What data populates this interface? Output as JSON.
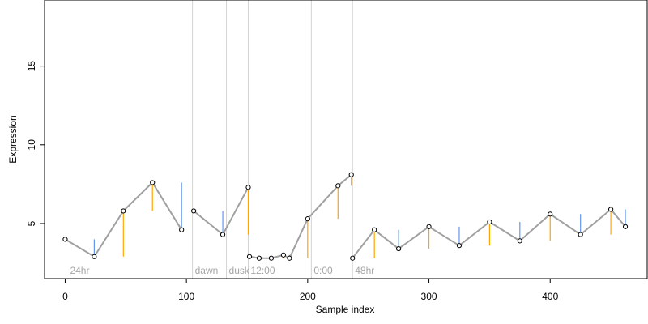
{
  "chart_data": {
    "type": "line",
    "xlabel": "Sample index",
    "ylabel": "Expression",
    "xlim": [
      -17,
      480
    ],
    "ylim": [
      1.5,
      19.2
    ],
    "x_ticks": [
      0,
      100,
      200,
      300,
      400
    ],
    "y_ticks": [
      5,
      10,
      15
    ],
    "grid": false,
    "markers": [
      {
        "x": 105,
        "label": "dawn"
      },
      {
        "x": 133,
        "label": "dusk"
      },
      {
        "x": 151,
        "label": "12:00"
      },
      {
        "x": 203,
        "label": "0:00"
      },
      {
        "x": 237,
        "label": "48hr"
      }
    ],
    "corner_label": {
      "x": 2,
      "label": "24hr"
    },
    "series": [
      {
        "style": "grey-line",
        "color": "#a0a0a0",
        "segments": [
          {
            "x": [
              0,
              24,
              48,
              72,
              96
            ],
            "y": [
              4.0,
              2.9,
              5.8,
              7.6,
              4.6
            ]
          },
          {
            "x": [
              106,
              130,
              151
            ],
            "y": [
              5.8,
              4.3,
              7.3
            ]
          },
          {
            "x": [
              152,
              160,
              170,
              180,
              185,
              200,
              225,
              236
            ],
            "y": [
              2.9,
              2.8,
              2.8,
              3.0,
              2.8,
              5.3,
              7.4,
              8.1
            ]
          },
          {
            "x": [
              237,
              255,
              275,
              300,
              325,
              350,
              375,
              400,
              425,
              450,
              462
            ],
            "y": [
              2.8,
              4.6,
              3.4,
              4.8,
              3.6,
              5.1,
              3.9,
              5.6,
              4.3,
              5.9,
              4.8
            ]
          }
        ]
      },
      {
        "style": "upward-steps",
        "color": "#ffa500"
      },
      {
        "style": "downward-steps",
        "color": "#6495ed"
      },
      {
        "style": "points",
        "color": "#000000",
        "fill": "#ffffff"
      }
    ]
  }
}
